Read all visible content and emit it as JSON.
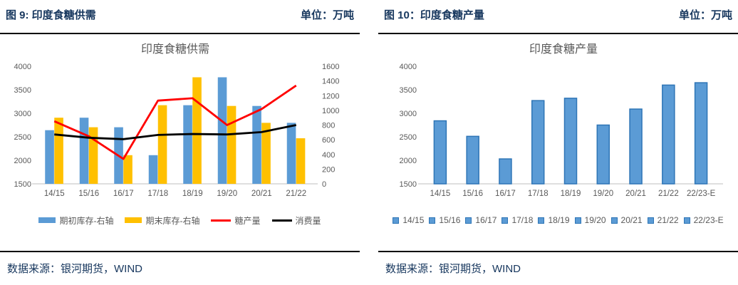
{
  "panels": [
    {
      "header": {
        "title": "图 9: 印度食糖供需",
        "unit": "单位：万吨"
      },
      "source": "数据来源：银河期货，WIND"
    },
    {
      "header": {
        "title": "图 10：印度食糖产量",
        "unit": "单位：万吨"
      },
      "source": "数据来源：银河期货，WIND"
    }
  ],
  "colors": {
    "header_navy": "#17375E",
    "bar_blue": "#5B9BD5",
    "bar_blue_border": "#2E75B6",
    "bar_yellow": "#FFC000",
    "line_red": "#FF0000",
    "line_black": "#000000",
    "axis_text_gray": "#595959",
    "axis_line_gray": "#BFBFBF"
  },
  "chart_data": [
    {
      "type": "combo",
      "title": "印度食糖供需",
      "categories": [
        "14/15",
        "15/16",
        "16/17",
        "17/18",
        "18/19",
        "19/20",
        "20/21",
        "21/22"
      ],
      "left_axis": {
        "min": 1500,
        "max": 4000,
        "step": 500
      },
      "right_axis": {
        "min": 0,
        "max": 1600,
        "step": 200
      },
      "grid": false,
      "legend_position": "bottom",
      "series": [
        {
          "name": "期初库存-右轴",
          "type": "bar",
          "axis": "right",
          "color": "#5B9BD5",
          "values": [
            730,
            900,
            770,
            390,
            1070,
            1450,
            1060,
            830
          ]
        },
        {
          "name": "期末库存-右轴",
          "type": "bar",
          "axis": "right",
          "color": "#FFC000",
          "values": [
            900,
            770,
            390,
            1070,
            1450,
            1060,
            830,
            620
          ]
        },
        {
          "name": "糖产量",
          "type": "line",
          "axis": "left",
          "color": "#FF0000",
          "values": [
            2830,
            2510,
            2030,
            3270,
            3320,
            2750,
            3090,
            3590
          ]
        },
        {
          "name": "消费量",
          "type": "line",
          "axis": "left",
          "color": "#000000",
          "values": [
            2550,
            2480,
            2450,
            2540,
            2560,
            2550,
            2600,
            2750
          ]
        }
      ]
    },
    {
      "type": "bar",
      "title": "印度食糖产量",
      "categories": [
        "14/15",
        "15/16",
        "16/17",
        "17/18",
        "18/19",
        "19/20",
        "20/21",
        "21/22",
        "22/23-E"
      ],
      "values": [
        2840,
        2510,
        2030,
        3270,
        3320,
        2750,
        3090,
        3600,
        3650
      ],
      "ylim": [
        1500,
        4000
      ],
      "ystep": 500,
      "grid": false,
      "bar_color": "#5B9BD5",
      "bar_border": "#2E75B6",
      "legend_position": "bottom",
      "legend_entries": [
        "14/15",
        "15/16",
        "16/17",
        "17/18",
        "18/19",
        "19/20",
        "20/21",
        "21/22",
        "22/23-E"
      ]
    }
  ]
}
